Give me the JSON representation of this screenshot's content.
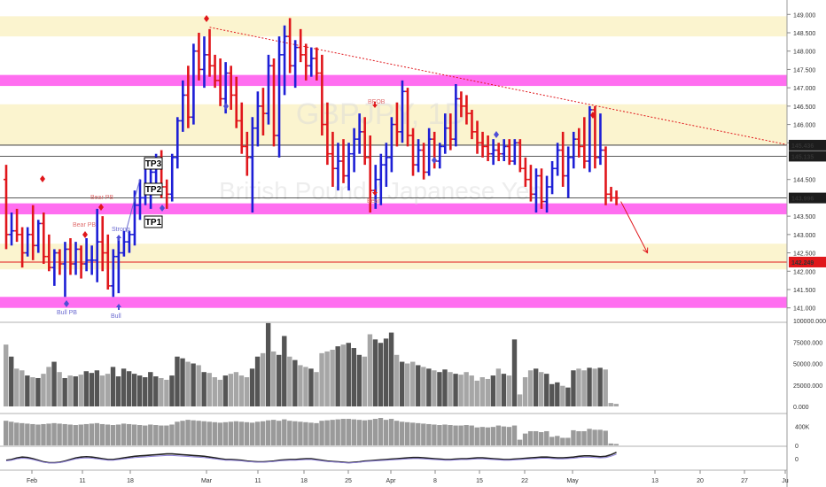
{
  "colors": {
    "bull": "#1d1fd6",
    "bear": "#e0161b",
    "pink_zone": "#ff6ef0",
    "yellow_zone": "#fbf4cf",
    "volume_dark": "#555555",
    "volume_light": "#a6a6a6",
    "resistance_line": "#e0161b",
    "support_line": "#e0161b"
  },
  "watermark": {
    "symbol": "GBPJPY, 1D",
    "name": "British Pound / Japanese Yen"
  },
  "annotations": {
    "tp1": "TP1",
    "tp2": "TP2",
    "tp3": "TP3",
    "bull_pb": "Bull PB",
    "bear_pb_1": "Bear PB",
    "bear_pb_2": "Bear PB",
    "strong": "Strong",
    "beob": "BEOB",
    "bear": "Bear",
    "bull": "Bull"
  },
  "chart_data": [
    {
      "type": "bar",
      "subtype": "ohlc",
      "x_axis_labels": [
        "Feb",
        "11",
        "18",
        "Mar",
        "11",
        "18",
        "25",
        "Apr",
        "8",
        "15",
        "22",
        "May",
        "13",
        "20",
        "27",
        "Ju"
      ],
      "y_axis": {
        "ylim": [
          140.8,
          149.2
        ],
        "tick_labels": [
          "149.000",
          "148.500",
          "148.000",
          "147.500",
          "147.000",
          "146.500",
          "146.000",
          "145.500",
          "144.500",
          "143.500",
          "143.000",
          "142.500",
          "142.000",
          "141.500",
          "141.000"
        ],
        "price_labels": [
          {
            "value": 145.436,
            "label": "145.436",
            "style": "dark"
          },
          {
            "value": 145.135,
            "label": "145.135",
            "style": "dark"
          },
          {
            "value": 143.996,
            "label": "143.996",
            "style": "dark"
          },
          {
            "value": 142.249,
            "label": "142.249",
            "style": "red"
          }
        ]
      },
      "zones": {
        "pink": [
          [
            147.05,
            147.35
          ],
          [
            143.55,
            143.85
          ],
          [
            141.0,
            141.3
          ]
        ],
        "yellow": [
          [
            148.4,
            148.95
          ],
          [
            145.45,
            146.55
          ],
          [
            142.05,
            142.75
          ]
        ]
      },
      "horizontal_lines": [
        145.436,
        145.135,
        143.996,
        142.249
      ],
      "trendline": {
        "from": {
          "bar": 38,
          "y": 148.65
        },
        "to_price": 145.45
      },
      "projection_arrow": {
        "from_price": 143.9,
        "to_price": 142.5
      },
      "candles": [
        [
          144.5,
          144.9,
          142.6,
          143.0
        ],
        [
          143.0,
          143.6,
          142.7,
          143.1
        ],
        [
          143.1,
          143.7,
          142.8,
          143.0
        ],
        [
          143.0,
          143.2,
          142.1,
          142.5
        ],
        [
          142.5,
          143.2,
          142.4,
          143.0
        ],
        [
          143.0,
          143.8,
          142.3,
          142.7
        ],
        [
          142.7,
          143.4,
          142.5,
          143.3
        ],
        [
          143.3,
          143.6,
          142.2,
          142.4
        ],
        [
          142.4,
          143.0,
          142.0,
          142.1
        ],
        [
          142.1,
          142.6,
          141.6,
          142.5
        ],
        [
          142.5,
          142.6,
          141.9,
          142.2
        ],
        [
          142.2,
          142.8,
          141.3,
          142.6
        ],
        [
          142.6,
          142.9,
          141.9,
          142.2
        ],
        [
          142.2,
          142.8,
          141.9,
          142.6
        ],
        [
          142.6,
          142.7,
          141.8,
          142.2
        ],
        [
          142.2,
          142.9,
          142.0,
          142.3
        ],
        [
          142.3,
          142.7,
          141.9,
          142.3
        ],
        [
          142.3,
          143.7,
          141.7,
          142.8
        ],
        [
          142.8,
          143.5,
          142.0,
          142.5
        ],
        [
          142.5,
          143.0,
          141.5,
          141.6
        ],
        [
          141.6,
          142.6,
          141.3,
          142.4
        ],
        [
          142.4,
          142.9,
          141.4,
          142.5
        ],
        [
          142.5,
          143.1,
          142.4,
          142.8
        ],
        [
          142.8,
          143.1,
          142.5,
          143.0
        ],
        [
          143.0,
          144.2,
          142.7,
          143.8
        ],
        [
          143.8,
          144.5,
          143.4,
          144.0
        ],
        [
          144.0,
          144.8,
          143.8,
          144.2
        ],
        [
          144.2,
          144.9,
          143.7,
          144.7
        ],
        [
          144.7,
          145.2,
          144.3,
          144.9
        ],
        [
          144.9,
          145.3,
          144.0,
          144.3
        ],
        [
          144.3,
          144.5,
          143.7,
          144.1
        ],
        [
          144.1,
          145.2,
          143.9,
          145.1
        ],
        [
          145.1,
          146.2,
          144.8,
          146.1
        ],
        [
          146.1,
          147.2,
          145.8,
          146.8
        ],
        [
          146.8,
          147.6,
          145.9,
          146.2
        ],
        [
          146.2,
          148.2,
          146.0,
          148.0
        ],
        [
          148.0,
          148.5,
          147.2,
          147.5
        ],
        [
          147.5,
          148.4,
          147.0,
          147.9
        ],
        [
          147.9,
          148.6,
          147.3,
          147.6
        ],
        [
          147.6,
          147.9,
          147.0,
          147.2
        ],
        [
          147.2,
          147.8,
          146.5,
          146.7
        ],
        [
          146.7,
          147.7,
          146.3,
          147.4
        ],
        [
          147.4,
          147.6,
          146.4,
          146.8
        ],
        [
          146.8,
          147.3,
          145.9,
          146.1
        ],
        [
          146.1,
          146.6,
          145.2,
          145.4
        ],
        [
          145.4,
          145.8,
          144.6,
          145.1
        ],
        [
          145.1,
          146.2,
          143.6,
          145.9
        ],
        [
          145.9,
          146.9,
          145.4,
          146.5
        ],
        [
          146.5,
          147.0,
          145.7,
          146.3
        ],
        [
          146.3,
          147.9,
          146.0,
          147.6
        ],
        [
          147.6,
          147.8,
          145.4,
          145.7
        ],
        [
          145.7,
          148.4,
          145.1,
          147.9
        ],
        [
          147.9,
          148.7,
          146.8,
          148.4
        ],
        [
          148.4,
          148.9,
          147.4,
          147.6
        ],
        [
          147.6,
          148.3,
          147.0,
          148.1
        ],
        [
          148.1,
          148.6,
          147.7,
          147.9
        ],
        [
          147.9,
          148.2,
          147.2,
          147.6
        ],
        [
          147.6,
          148.1,
          147.3,
          147.8
        ],
        [
          147.8,
          148.1,
          147.2,
          147.4
        ],
        [
          147.4,
          147.9,
          145.7,
          146.0
        ],
        [
          146.0,
          146.6,
          144.9,
          145.2
        ],
        [
          145.2,
          145.8,
          144.3,
          144.8
        ],
        [
          144.8,
          145.5,
          144.2,
          145.0
        ],
        [
          145.0,
          145.6,
          144.4,
          144.6
        ],
        [
          144.6,
          145.5,
          144.2,
          145.2
        ],
        [
          145.2,
          145.9,
          144.7,
          145.6
        ],
        [
          145.6,
          146.3,
          145.2,
          145.8
        ],
        [
          145.8,
          146.2,
          144.9,
          145.1
        ],
        [
          145.1,
          145.7,
          143.6,
          144.2
        ],
        [
          144.2,
          144.9,
          143.7,
          144.5
        ],
        [
          144.5,
          145.2,
          143.8,
          144.9
        ],
        [
          144.9,
          145.5,
          144.3,
          145.1
        ],
        [
          145.1,
          146.2,
          144.7,
          146.0
        ],
        [
          146.0,
          146.6,
          145.4,
          145.8
        ],
        [
          145.8,
          147.2,
          145.5,
          146.9
        ],
        [
          146.9,
          147.0,
          145.4,
          145.7
        ],
        [
          145.7,
          145.9,
          144.6,
          144.9
        ],
        [
          144.9,
          145.6,
          144.7,
          145.3
        ],
        [
          145.3,
          145.5,
          144.5,
          144.7
        ],
        [
          144.7,
          145.9,
          144.6,
          145.6
        ],
        [
          145.6,
          145.8,
          144.8,
          145.0
        ],
        [
          145.0,
          145.5,
          144.8,
          145.4
        ],
        [
          145.4,
          146.3,
          145.2,
          145.9
        ],
        [
          145.9,
          146.3,
          145.3,
          145.6
        ],
        [
          145.6,
          147.1,
          145.4,
          146.7
        ],
        [
          146.7,
          146.9,
          146.2,
          146.5
        ],
        [
          146.5,
          146.8,
          146.0,
          146.3
        ],
        [
          146.3,
          146.4,
          145.6,
          145.8
        ],
        [
          145.8,
          146.1,
          145.2,
          145.5
        ],
        [
          145.5,
          145.8,
          145.1,
          145.4
        ],
        [
          145.4,
          145.7,
          145.0,
          145.2
        ],
        [
          145.2,
          145.6,
          144.9,
          145.3
        ],
        [
          145.3,
          145.5,
          145.0,
          145.2
        ],
        [
          145.2,
          145.6,
          145.0,
          145.4
        ],
        [
          145.4,
          145.6,
          144.9,
          145.0
        ],
        [
          145.0,
          145.6,
          144.9,
          145.5
        ],
        [
          145.5,
          145.6,
          144.7,
          144.8
        ],
        [
          144.8,
          145.1,
          144.3,
          144.5
        ],
        [
          144.5,
          144.9,
          143.9,
          144.1
        ],
        [
          144.1,
          144.8,
          143.6,
          144.6
        ],
        [
          144.6,
          144.8,
          143.7,
          143.9
        ],
        [
          143.9,
          144.6,
          143.6,
          144.3
        ],
        [
          144.3,
          145.0,
          144.1,
          144.8
        ],
        [
          144.8,
          145.5,
          144.6,
          145.3
        ],
        [
          145.3,
          145.8,
          144.3,
          144.6
        ],
        [
          144.6,
          145.4,
          144.0,
          145.1
        ],
        [
          145.1,
          145.8,
          144.8,
          145.6
        ],
        [
          145.6,
          145.9,
          145.1,
          145.4
        ],
        [
          145.4,
          146.2,
          144.8,
          145.0
        ],
        [
          145.0,
          146.5,
          144.7,
          146.4
        ],
        [
          146.4,
          146.5,
          144.8,
          145.1
        ],
        [
          145.1,
          146.3,
          144.9,
          145.3
        ],
        [
          145.3,
          145.4,
          143.8,
          144.1
        ],
        [
          144.1,
          144.3,
          143.9,
          144.0
        ],
        [
          144.0,
          144.2,
          143.8,
          143.996
        ]
      ],
      "volume": {
        "tick_labels": [
          "100000.000",
          "75000.000",
          "50000.000",
          "25000.000",
          "0.000"
        ],
        "ylim": [
          0,
          100000
        ],
        "values": [
          72000,
          58000,
          44000,
          42000,
          36000,
          34000,
          33000,
          38000,
          46000,
          52000,
          40000,
          33000,
          36000,
          35000,
          37000,
          41000,
          39000,
          42000,
          36000,
          38000,
          46000,
          35000,
          44000,
          41000,
          38000,
          36000,
          34000,
          40000,
          35000,
          33000,
          31000,
          36000,
          58000,
          56000,
          52000,
          50000,
          48000,
          40000,
          39000,
          34000,
          31000,
          36000,
          38000,
          40000,
          36000,
          34000,
          44000,
          58000,
          62000,
          97000,
          64000,
          60000,
          82000,
          58000,
          54000,
          48000,
          46000,
          44000,
          40000,
          62000,
          64000,
          66000,
          70000,
          72000,
          74000,
          68000,
          60000,
          58000,
          84000,
          78000,
          74000,
          79000,
          86000,
          60000,
          52000,
          50000,
          52000,
          48000,
          46000,
          44000,
          42000,
          40000,
          43000,
          40000,
          38000,
          37000,
          40000,
          36000,
          30000,
          34000,
          32000,
          36000,
          44000,
          38000,
          36000,
          78000,
          14000,
          34000,
          42000,
          44000,
          40000,
          38000,
          26000,
          28000,
          24000,
          22000,
          42000,
          44000,
          42000,
          45000,
          44000,
          45000,
          43000,
          4000,
          3000
        ]
      },
      "obv": {
        "tick_labels": [
          "400K",
          "0"
        ],
        "values": [
          520,
          500,
          480,
          470,
          460,
          450,
          440,
          450,
          460,
          470,
          460,
          450,
          440,
          430,
          440,
          450,
          460,
          470,
          450,
          440,
          430,
          440,
          460,
          450,
          440,
          430,
          420,
          440,
          430,
          420,
          420,
          440,
          500,
          520,
          540,
          530,
          520,
          510,
          500,
          490,
          480,
          490,
          500,
          510,
          500,
          490,
          480,
          500,
          510,
          530,
          540,
          520,
          550,
          520,
          510,
          500,
          490,
          480,
          470,
          520,
          530,
          540,
          550,
          560,
          560,
          550,
          540,
          530,
          540,
          560,
          580,
          540,
          560,
          520,
          500,
          490,
          480,
          470,
          460,
          450,
          440,
          430,
          440,
          430,
          420,
          420,
          430,
          420,
          380,
          390,
          380,
          390,
          420,
          400,
          390,
          420,
          120,
          250,
          300,
          300,
          280,
          300,
          180,
          200,
          160,
          160,
          320,
          300,
          300,
          350,
          330,
          330,
          310,
          40,
          30
        ]
      },
      "oscillator": {
        "tick_labels": [
          "0"
        ],
        "values": [
          -0.2,
          -0.1,
          0.1,
          0.2,
          0.15,
          0.0,
          -0.2,
          -0.4,
          -0.5,
          -0.5,
          -0.45,
          -0.3,
          -0.1,
          0.1,
          0.2,
          0.25,
          0.2,
          0.1,
          0.0,
          -0.1,
          -0.1,
          0.0,
          0.1,
          0.2,
          0.3,
          0.35,
          0.4,
          0.45,
          0.5,
          0.55,
          0.6,
          0.6,
          0.55,
          0.5,
          0.45,
          0.4,
          0.35,
          0.3,
          0.2,
          0.1,
          0.0,
          -0.1,
          -0.1,
          -0.15,
          -0.2,
          -0.3,
          -0.35,
          -0.4,
          -0.4,
          -0.35,
          -0.3,
          -0.2,
          -0.15,
          -0.1,
          -0.1,
          -0.05,
          0.0,
          0.0,
          -0.1,
          -0.2,
          -0.3,
          -0.35,
          -0.4,
          -0.45,
          -0.5,
          -0.45,
          -0.4,
          -0.3,
          -0.25,
          -0.2,
          -0.15,
          -0.1,
          -0.05,
          0.0,
          0.05,
          0.1,
          0.15,
          0.15,
          0.1,
          0.05,
          0.0,
          -0.05,
          -0.1,
          -0.1,
          -0.05,
          0.0,
          0.0,
          0.05,
          0.1,
          0.1,
          0.05,
          0.0,
          -0.05,
          -0.1,
          -0.1,
          -0.05,
          0.0,
          0.05,
          0.1,
          0.15,
          0.2,
          0.2,
          0.15,
          0.1,
          0.1,
          0.15,
          0.2,
          0.3,
          0.35,
          0.35,
          0.3,
          0.25,
          0.3,
          0.5,
          0.8
        ]
      }
    }
  ]
}
